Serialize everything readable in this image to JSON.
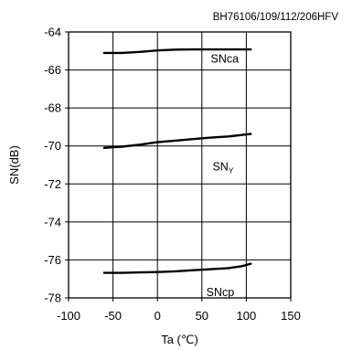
{
  "chart_data": {
    "type": "line",
    "title": "BH76106/109/112/206HFV",
    "xlabel": "Ta (℃)",
    "ylabel": "SN(dB)",
    "xlim": [
      -100,
      150
    ],
    "ylim": [
      -78,
      -64
    ],
    "xticks": [
      -100,
      -50,
      0,
      50,
      100,
      150
    ],
    "yticks": [
      -64,
      -66,
      -68,
      -70,
      -72,
      -74,
      -76,
      -78
    ],
    "xtick_labels": [
      "-100",
      "-50",
      "0",
      "50",
      "100",
      "150"
    ],
    "ytick_labels": [
      "-64",
      "-66",
      "-68",
      "-70",
      "-72",
      "-74",
      "-76",
      "-78"
    ],
    "grid": true,
    "legend": "none",
    "series": [
      {
        "name": "SNca",
        "label_main": "SNca",
        "label_sub": "",
        "label_at": [
          60,
          -65.6
        ],
        "x": [
          -60,
          -40,
          -20,
          0,
          20,
          40,
          60,
          80,
          105
        ],
        "y": [
          -65.1,
          -65.1,
          -65.05,
          -64.97,
          -64.93,
          -64.92,
          -64.92,
          -64.92,
          -64.92
        ]
      },
      {
        "name": "SNY",
        "label_main": "SN",
        "label_sub": "Y",
        "label_at": [
          62,
          -71.3
        ],
        "x": [
          -60,
          -40,
          -20,
          0,
          20,
          40,
          60,
          80,
          105
        ],
        "y": [
          -70.1,
          -70.04,
          -69.93,
          -69.8,
          -69.72,
          -69.64,
          -69.56,
          -69.5,
          -69.37
        ]
      },
      {
        "name": "SNcp",
        "label_main": "SNcp",
        "label_sub": "",
        "label_at": [
          55,
          -77.9
        ],
        "x": [
          -60,
          -40,
          -20,
          0,
          20,
          40,
          60,
          80,
          95,
          105
        ],
        "y": [
          -76.68,
          -76.68,
          -76.66,
          -76.64,
          -76.6,
          -76.54,
          -76.49,
          -76.43,
          -76.33,
          -76.2
        ]
      }
    ]
  }
}
